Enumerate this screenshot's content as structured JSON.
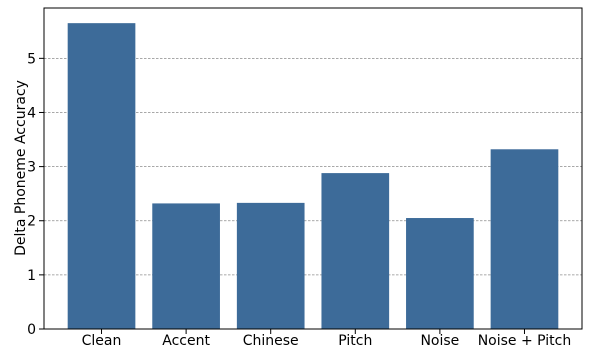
{
  "chart_data": {
    "type": "bar",
    "categories": [
      "Clean",
      "Accent",
      "Chinese",
      "Pitch",
      "Noise",
      "Noise + Pitch"
    ],
    "values": [
      5.65,
      2.32,
      2.33,
      2.88,
      2.05,
      3.32
    ],
    "title": "",
    "xlabel": "",
    "ylabel": "Delta Phoneme Accuracy",
    "ylim": [
      0,
      5.93
    ],
    "yticks": [
      0,
      1,
      2,
      3,
      4,
      5
    ],
    "grid": "y dashed",
    "bar_color": "#3d6b99"
  }
}
